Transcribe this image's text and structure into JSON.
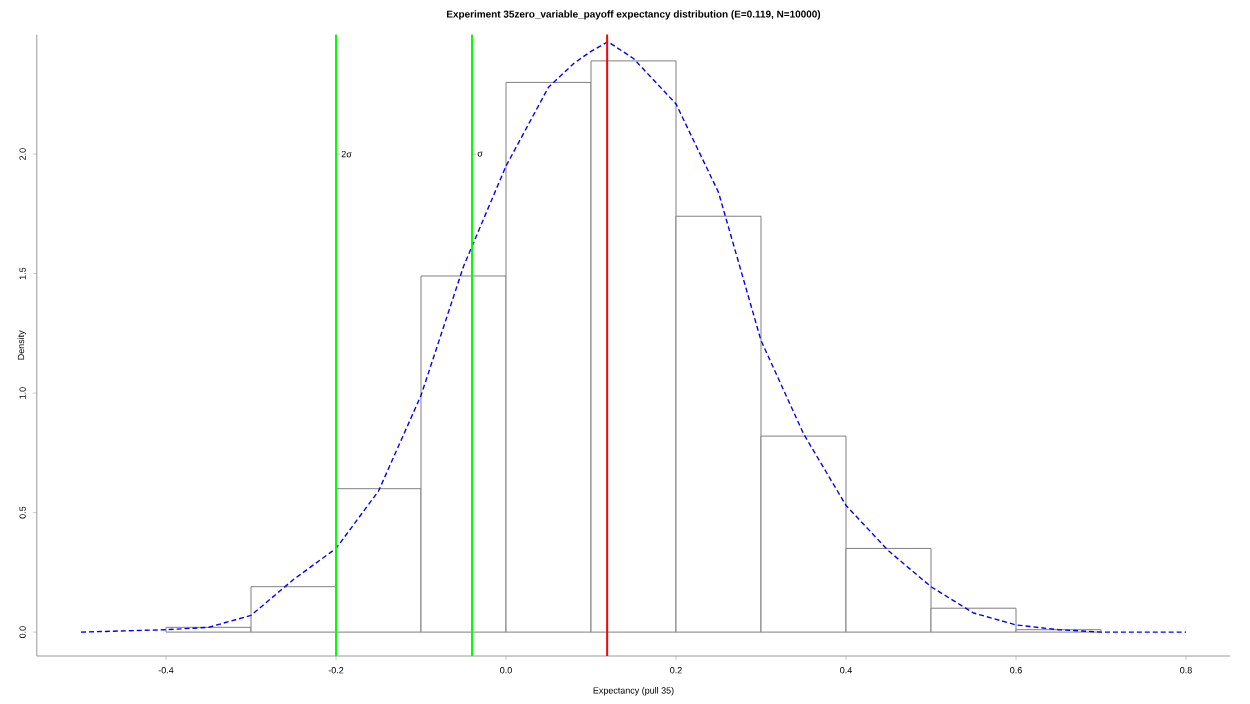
{
  "chart_data": {
    "type": "histogram",
    "title": "Experiment 35zero_variable_payoff expectancy distribution (E=0.119, N=10000)",
    "xlabel": "Expectancy (pull 35)",
    "ylabel": "Density",
    "series": [
      {
        "type": "histogram",
        "color": "#808080",
        "bins": [
          -0.4,
          -0.3,
          -0.2,
          -0.1,
          0.0,
          0.1,
          0.2,
          0.3,
          0.4,
          0.5,
          0.6,
          0.7
        ],
        "values": [
          0.02,
          0.19,
          0.6,
          1.49,
          2.3,
          2.39,
          1.74,
          0.82,
          0.35,
          0.1,
          0.01
        ]
      },
      {
        "type": "line",
        "color": "#0000ff",
        "line_style": "dashed",
        "x": [
          -0.5,
          -0.4,
          -0.35,
          -0.3,
          -0.25,
          -0.2,
          -0.15,
          -0.1,
          -0.05,
          0.0,
          0.05,
          0.08,
          0.1,
          0.12,
          0.15,
          0.2,
          0.25,
          0.3,
          0.35,
          0.4,
          0.45,
          0.5,
          0.55,
          0.6,
          0.65,
          0.7,
          0.8
        ],
        "values": [
          0,
          0.01,
          0.02,
          0.07,
          0.22,
          0.35,
          0.59,
          0.99,
          1.53,
          1.95,
          2.28,
          2.38,
          2.43,
          2.47,
          2.4,
          2.21,
          1.84,
          1.22,
          0.83,
          0.53,
          0.34,
          0.19,
          0.08,
          0.03,
          0.01,
          0,
          0
        ]
      }
    ],
    "ref_lines": [
      {
        "axis": "x",
        "value": -0.2,
        "label": "2σ",
        "color": "#00ff00"
      },
      {
        "axis": "x",
        "value": -0.04,
        "label": "σ",
        "color": "#00ff00"
      },
      {
        "axis": "x",
        "value": 0.119,
        "color": "#ff0000"
      }
    ],
    "xlim": [
      -0.552,
      0.852
    ],
    "ylim": [
      -0.1,
      2.5
    ],
    "xticks": [
      -0.4,
      -0.2,
      {
        "value": 0,
        "label": "0.0"
      },
      0.2,
      0.4,
      0.6,
      0.8
    ],
    "yticks": [
      {
        "value": 0,
        "label": "0.0"
      },
      0.5,
      {
        "value": 1,
        "label": "1.0"
      },
      1.5,
      {
        "value": 2,
        "label": "2.0"
      }
    ],
    "grid": false
  }
}
